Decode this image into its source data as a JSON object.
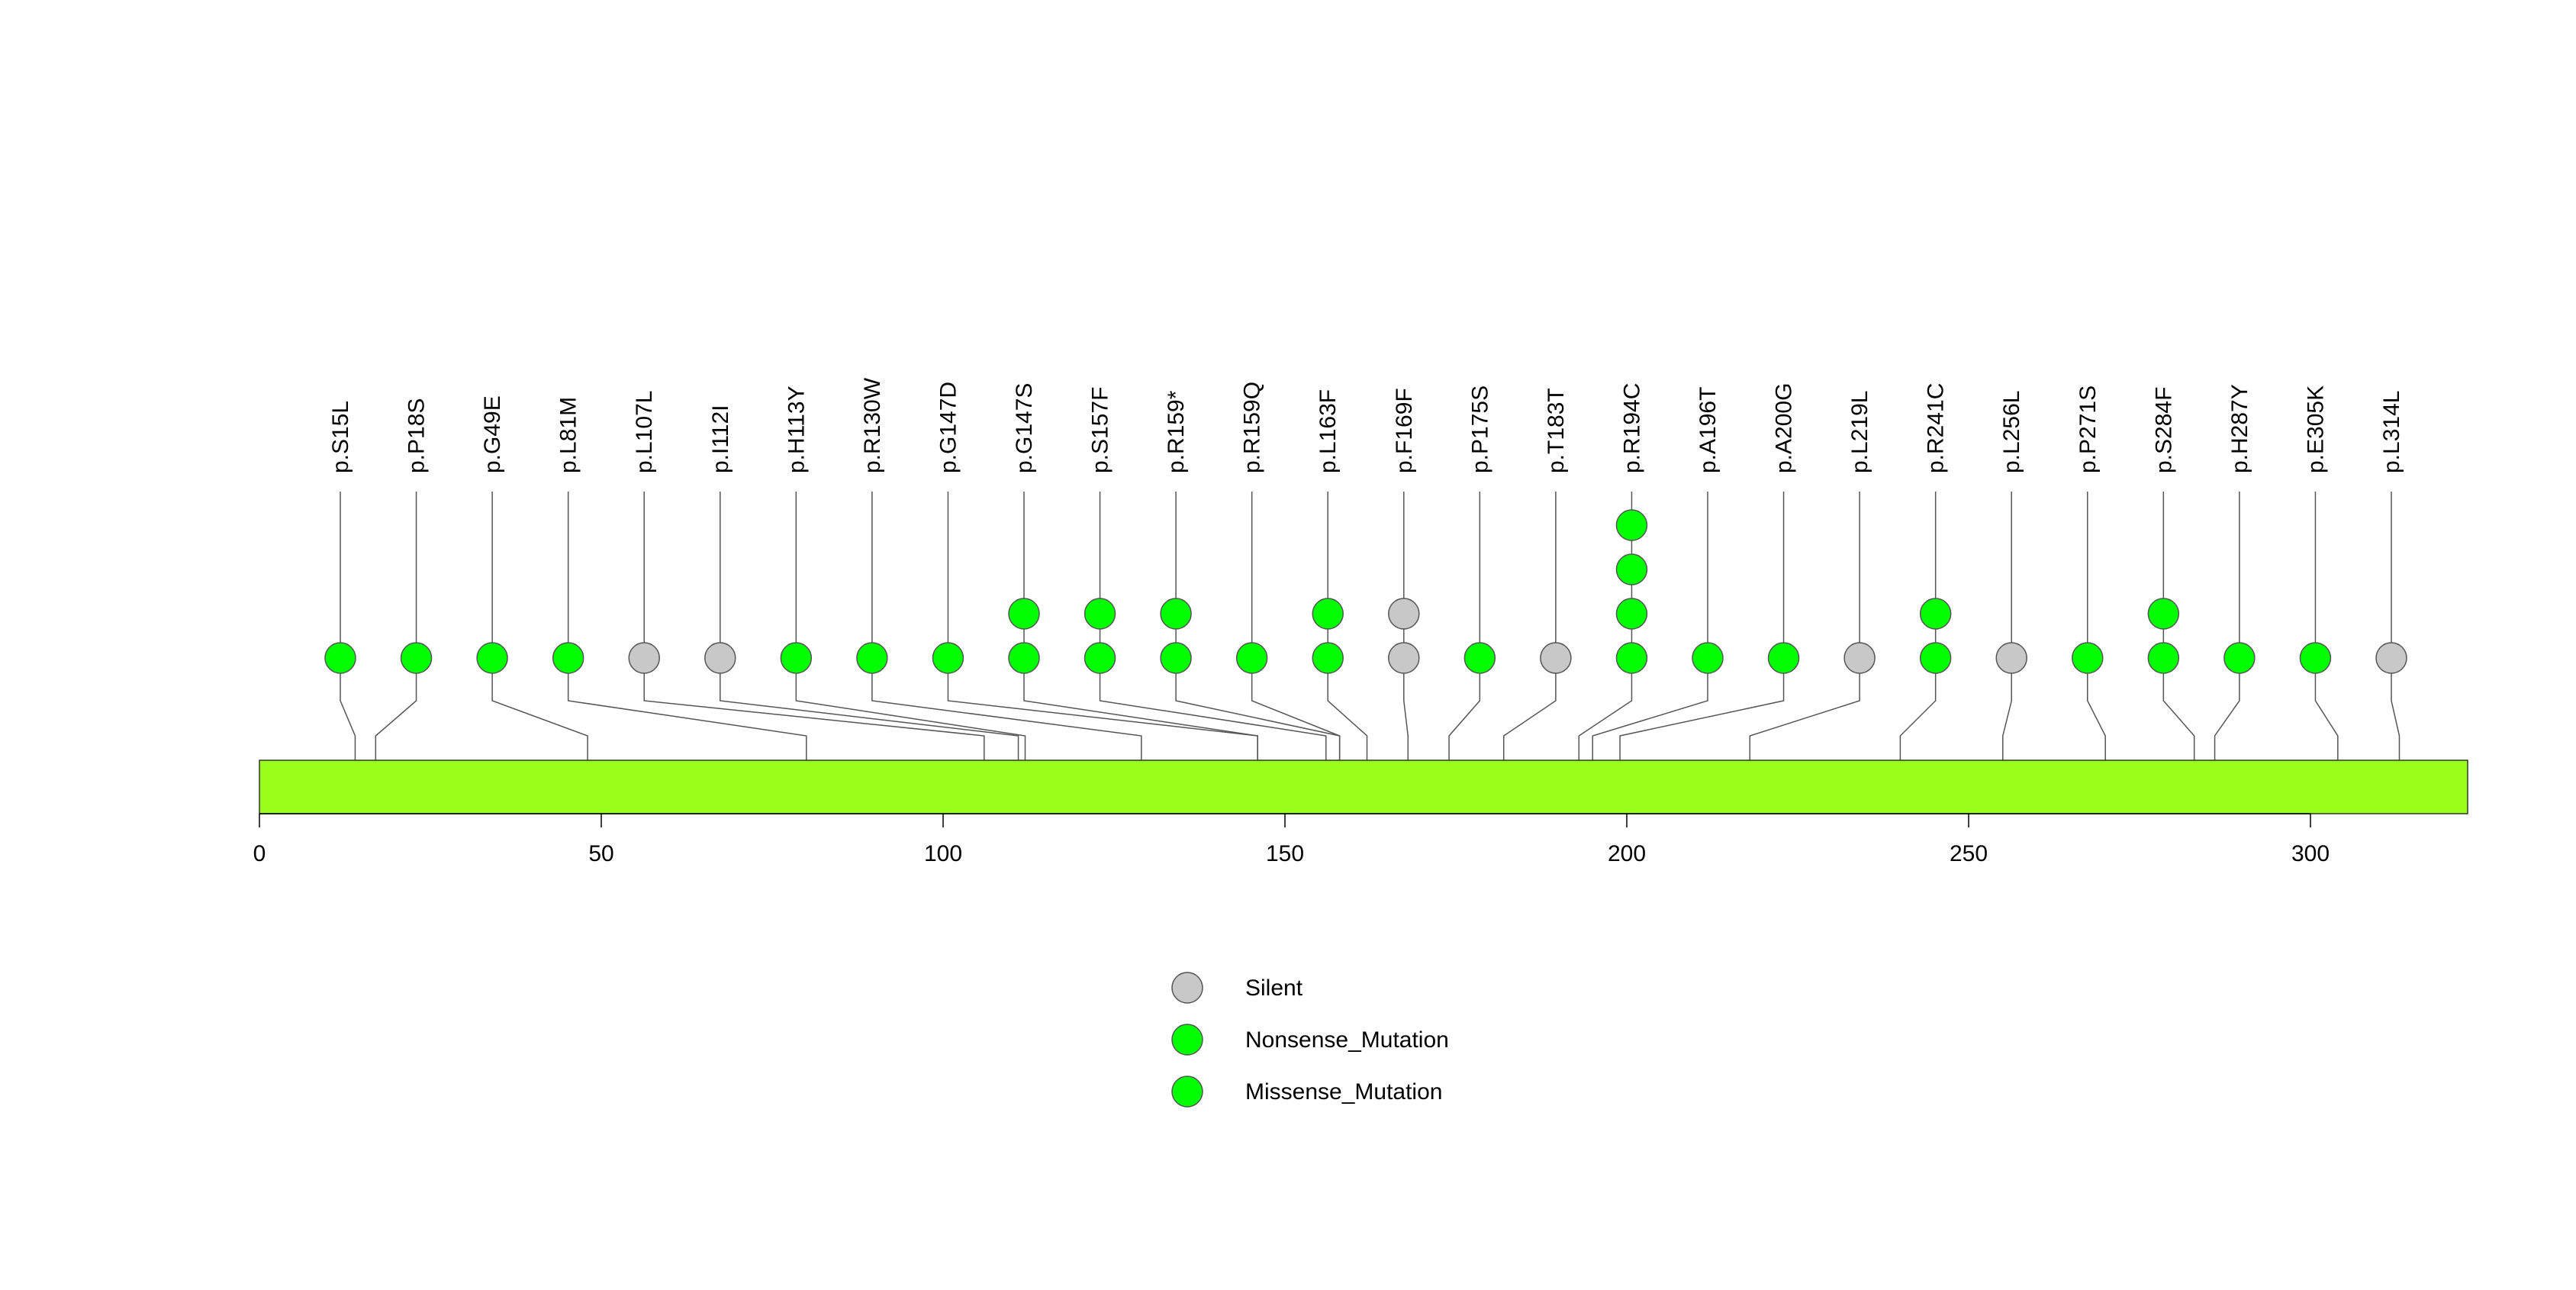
{
  "chart_data": {
    "type": "lollipop",
    "protein_range": [
      0,
      323
    ],
    "x_ticks": [
      0,
      50,
      100,
      150,
      200,
      250,
      300
    ],
    "domain_color": "#99FF1A",
    "mutation_types": [
      {
        "key": "Silent",
        "label": "Silent",
        "color": "#C8C8C8"
      },
      {
        "key": "Nonsense_Mutation",
        "label": "Nonsense_Mutation",
        "color": "#00FF00"
      },
      {
        "key": "Missense_Mutation",
        "label": "Missense_Mutation",
        "color": "#00FF00"
      }
    ],
    "mutations": [
      {
        "label": "p.S15L",
        "position": 14,
        "stack": [
          "Missense_Mutation"
        ]
      },
      {
        "label": "p.P18S",
        "position": 17,
        "stack": [
          "Missense_Mutation"
        ]
      },
      {
        "label": "p.G49E",
        "position": 48,
        "stack": [
          "Missense_Mutation"
        ]
      },
      {
        "label": "p.L81M",
        "position": 80,
        "stack": [
          "Missense_Mutation"
        ]
      },
      {
        "label": "p.L107L",
        "position": 106,
        "stack": [
          "Silent"
        ]
      },
      {
        "label": "p.I112I",
        "position": 111,
        "stack": [
          "Silent"
        ]
      },
      {
        "label": "p.H113Y",
        "position": 112,
        "stack": [
          "Missense_Mutation"
        ]
      },
      {
        "label": "p.R130W",
        "position": 129,
        "stack": [
          "Missense_Mutation"
        ]
      },
      {
        "label": "p.G147D",
        "position": 146,
        "stack": [
          "Missense_Mutation"
        ]
      },
      {
        "label": "p.G147S",
        "position": 146,
        "stack": [
          "Missense_Mutation",
          "Missense_Mutation"
        ]
      },
      {
        "label": "p.S157F",
        "position": 156,
        "stack": [
          "Missense_Mutation",
          "Missense_Mutation"
        ]
      },
      {
        "label": "p.R159*",
        "position": 158,
        "stack": [
          "Nonsense_Mutation",
          "Nonsense_Mutation"
        ]
      },
      {
        "label": "p.R159Q",
        "position": 158,
        "stack": [
          "Missense_Mutation"
        ]
      },
      {
        "label": "p.L163F",
        "position": 162,
        "stack": [
          "Missense_Mutation",
          "Missense_Mutation"
        ]
      },
      {
        "label": "p.F169F",
        "position": 168,
        "stack": [
          "Silent",
          "Silent"
        ]
      },
      {
        "label": "p.P175S",
        "position": 174,
        "stack": [
          "Missense_Mutation"
        ]
      },
      {
        "label": "p.T183T",
        "position": 182,
        "stack": [
          "Silent"
        ]
      },
      {
        "label": "p.R194C",
        "position": 193,
        "stack": [
          "Missense_Mutation",
          "Missense_Mutation",
          "Missense_Mutation",
          "Missense_Mutation"
        ]
      },
      {
        "label": "p.A196T",
        "position": 195,
        "stack": [
          "Missense_Mutation"
        ]
      },
      {
        "label": "p.A200G",
        "position": 199,
        "stack": [
          "Missense_Mutation"
        ]
      },
      {
        "label": "p.L219L",
        "position": 218,
        "stack": [
          "Silent"
        ]
      },
      {
        "label": "p.R241C",
        "position": 240,
        "stack": [
          "Missense_Mutation",
          "Missense_Mutation"
        ]
      },
      {
        "label": "p.L256L",
        "position": 255,
        "stack": [
          "Silent"
        ]
      },
      {
        "label": "p.P271S",
        "position": 270,
        "stack": [
          "Missense_Mutation"
        ]
      },
      {
        "label": "p.S284F",
        "position": 283,
        "stack": [
          "Missense_Mutation",
          "Missense_Mutation"
        ]
      },
      {
        "label": "p.H287Y",
        "position": 286,
        "stack": [
          "Missense_Mutation"
        ]
      },
      {
        "label": "p.E305K",
        "position": 304,
        "stack": [
          "Missense_Mutation"
        ]
      },
      {
        "label": "p.L314L",
        "position": 313,
        "stack": [
          "Silent"
        ]
      }
    ]
  }
}
